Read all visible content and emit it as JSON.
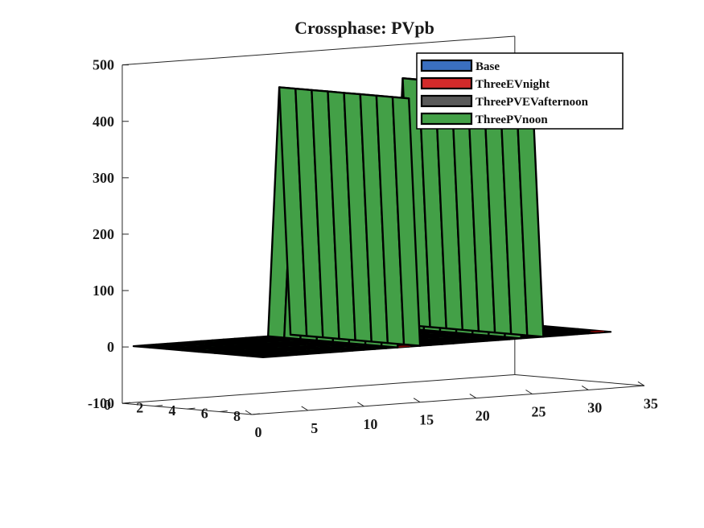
{
  "chart_data": {
    "type": "surface3d",
    "title": "Crossphase: PVpb",
    "xlabel": "",
    "ylabel": "",
    "zlabel": "",
    "xlim": [
      0,
      35
    ],
    "ylim": [
      0,
      8
    ],
    "zlim": [
      -100,
      500
    ],
    "x_ticks": [
      "0",
      "5",
      "10",
      "15",
      "20",
      "25",
      "30",
      "35"
    ],
    "y_ticks": [
      "0",
      "2",
      "4",
      "6",
      "8"
    ],
    "z_ticks": [
      "-100",
      "0",
      "100",
      "200",
      "300",
      "400",
      "500"
    ],
    "grid": false,
    "legend_position": "top-right",
    "series": [
      {
        "name": "Base",
        "color": "#3a6fc0",
        "x": [
          1,
          32
        ],
        "y": [
          0,
          8
        ],
        "values": [
          [
            0,
            0
          ],
          [
            0,
            0
          ]
        ]
      },
      {
        "name": "ThreeEVnight",
        "color": "#d22a2a",
        "x": [
          1,
          32
        ],
        "y": [
          0,
          8
        ],
        "values": [
          [
            0,
            0
          ],
          [
            0,
            0
          ]
        ]
      },
      {
        "name": "ThreePVEVafternoon",
        "color": "#5a5a5a",
        "x": [
          1,
          32
        ],
        "y": [
          0,
          8
        ],
        "values": [
          [
            0,
            0
          ],
          [
            0,
            0
          ]
        ]
      },
      {
        "name": "ThreePVnoon",
        "color": "#43a047",
        "x": [
          1,
          2,
          3,
          4,
          5,
          6,
          7,
          8,
          9,
          10,
          11,
          12,
          13,
          14,
          15,
          16,
          17,
          18,
          19,
          20,
          21,
          22,
          23,
          24,
          25,
          26,
          27,
          28,
          29,
          30,
          31,
          32
        ],
        "y": [
          0,
          1,
          2,
          3,
          4,
          5,
          6,
          7,
          8
        ],
        "values": [
          [
            0,
            0,
            0,
            0,
            0,
            0,
            0,
            0,
            0,
            0,
            0,
            0,
            0,
            0,
            0,
            0,
            0,
            0,
            0,
            0,
            0,
            0,
            0,
            0,
            0,
            0,
            0,
            0,
            0,
            0,
            0,
            0
          ],
          [
            0,
            0,
            0,
            0,
            0,
            0,
            0,
            0,
            0,
            0,
            0,
            0,
            0,
            0,
            0,
            0,
            0,
            0,
            0,
            0,
            0,
            0,
            0,
            0,
            0,
            0,
            0,
            0,
            0,
            0,
            0,
            0
          ],
          [
            0,
            0,
            0,
            0,
            0,
            0,
            0,
            0,
            0,
            0,
            0,
            0,
            0,
            0,
            0,
            0,
            0,
            0,
            0,
            0,
            0,
            0,
            0,
            0,
            0,
            0,
            0,
            0,
            0,
            0,
            0,
            0
          ],
          [
            0,
            0,
            0,
            0,
            0,
            0,
            0,
            0,
            0,
            0,
            0,
            0,
            0,
            0,
            0,
            0,
            0,
            0,
            0,
            0,
            0,
            0,
            0,
            0,
            0,
            0,
            0,
            0,
            0,
            0,
            0,
            0
          ],
          [
            0,
            0,
            0,
            0,
            0,
            0,
            0,
            0,
            0,
            0,
            0,
            0,
            0,
            0,
            0,
            0,
            0,
            0,
            0,
            0,
            0,
            0,
            0,
            0,
            0,
            0,
            0,
            0,
            0,
            0,
            0,
            0
          ],
          [
            0,
            0,
            0,
            0,
            0,
            0,
            0,
            0,
            0,
            0,
            0,
            0,
            0,
            0,
            0,
            0,
            0,
            0,
            0,
            0,
            0,
            0,
            0,
            0,
            0,
            0,
            0,
            0,
            0,
            0,
            0,
            0
          ],
          [
            0,
            0,
            0,
            0,
            0,
            0,
            0,
            0,
            0,
            0,
            0,
            0,
            0,
            0,
            0,
            0,
            0,
            0,
            0,
            0,
            0,
            0,
            0,
            0,
            0,
            0,
            0,
            0,
            0,
            0,
            0,
            0
          ],
          [
            0,
            0,
            0,
            0,
            0,
            0,
            0,
            0,
            0,
            0,
            0,
            0,
            0,
            0,
            0,
            0,
            0,
            0,
            0,
            0,
            0,
            0,
            0,
            0,
            0,
            0,
            0,
            0,
            0,
            0,
            0,
            0
          ],
          [
            0,
            0,
            0,
            0,
            0,
            0,
            0,
            0,
            0,
            0,
            0,
            0,
            0,
            0,
            0,
            0,
            0,
            0,
            0,
            0,
            0,
            0,
            0,
            0,
            0,
            0,
            0,
            0,
            0,
            0,
            0,
            0
          ]
        ],
        "peaks": [
          {
            "x": 14,
            "y_start": 0,
            "y_end": 8,
            "value": 440
          },
          {
            "x": 25,
            "y_start": 0,
            "y_end": 8,
            "value": 440
          }
        ]
      }
    ]
  }
}
